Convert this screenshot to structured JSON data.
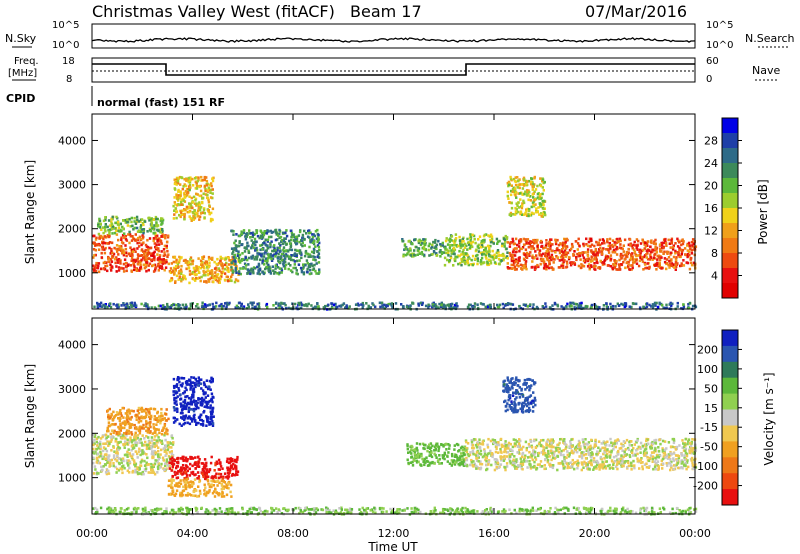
{
  "header": {
    "station": "Christmas Valley West (fitACF)",
    "beam": "Beam 17",
    "date": "07/Mar/2016"
  },
  "meta_panels": {
    "noise": {
      "left_label": "N.Sky",
      "right_label": "N.Search",
      "left_ticks": [
        "10^5",
        "10^0"
      ],
      "right_ticks": [
        "10^5",
        "10^0"
      ]
    },
    "freq": {
      "left_label_line1": "Freq.",
      "left_label_line2": "[MHz]",
      "right_label": "Nave",
      "left_ticks": [
        "18",
        "8"
      ],
      "right_ticks": [
        "60",
        "0"
      ]
    },
    "cpid": {
      "label": "CPID",
      "value": "normal (fast) 151 RF"
    }
  },
  "colorbars": {
    "power": {
      "label": "Power [dB]",
      "ticks": [
        "28",
        "24",
        "20",
        "16",
        "12",
        "8",
        "4"
      ],
      "colors": [
        "#0000e6",
        "#1e3fa8",
        "#2e6b88",
        "#3c8a5a",
        "#5cb83a",
        "#9ccd2e",
        "#f0d21a",
        "#f0a01a",
        "#f07a14",
        "#ee4a10",
        "#e81010",
        "#e00000"
      ]
    },
    "velocity": {
      "label": "Velocity [m s⁻¹]",
      "ticks": [
        "200",
        "100",
        "50",
        "15",
        "-15",
        "-50",
        "-100",
        "-200"
      ],
      "colors": [
        "#1020c0",
        "#2a55b0",
        "#2e7a5a",
        "#5cb83a",
        "#90d050",
        "#c8c8c8",
        "#f0c850",
        "#f0a020",
        "#ee7818",
        "#ee4810",
        "#e81010"
      ]
    }
  },
  "axes": {
    "y_label": "Slant Range [km]",
    "y_ticks": [
      "4000",
      "3000",
      "2000",
      "1000"
    ],
    "x_label": "Time UT",
    "x_ticks": [
      "00:00",
      "04:00",
      "08:00",
      "12:00",
      "16:00",
      "20:00",
      "00:00"
    ]
  },
  "chart_data": [
    {
      "type": "heatmap",
      "name": "Power [dB]",
      "x_unit": "UT hours",
      "y_unit": "km",
      "xlim": [
        0,
        24
      ],
      "ylim": [
        180,
        4600
      ],
      "regions": [
        {
          "x0": 0.0,
          "x1": 3.0,
          "y0": 1050,
          "y1": 1900,
          "value": 26
        },
        {
          "x0": 0.2,
          "x1": 2.8,
          "y0": 1900,
          "y1": 2300,
          "value": 12
        },
        {
          "x0": 3.0,
          "x1": 5.8,
          "y0": 800,
          "y1": 1400,
          "value": 20
        },
        {
          "x0": 3.2,
          "x1": 4.8,
          "y0": 2200,
          "y1": 3200,
          "value": 18
        },
        {
          "x0": 5.5,
          "x1": 9.0,
          "y0": 1000,
          "y1": 2000,
          "value": 8
        },
        {
          "x0": 12.3,
          "x1": 14.0,
          "y0": 1400,
          "y1": 1800,
          "value": 10
        },
        {
          "x0": 14.0,
          "x1": 16.5,
          "y0": 1200,
          "y1": 1900,
          "value": 14
        },
        {
          "x0": 16.5,
          "x1": 24.0,
          "y0": 1100,
          "y1": 1800,
          "value": 26
        },
        {
          "x0": 16.5,
          "x1": 18.0,
          "y0": 2300,
          "y1": 3200,
          "value": 16
        },
        {
          "x0": 0.0,
          "x1": 24.0,
          "y0": 200,
          "y1": 350,
          "value": 6
        }
      ]
    },
    {
      "type": "heatmap",
      "name": "Velocity [m s⁻¹]",
      "x_unit": "UT hours",
      "y_unit": "km",
      "xlim": [
        0,
        24
      ],
      "ylim": [
        180,
        4600
      ],
      "regions": [
        {
          "x0": 0.0,
          "x1": 3.2,
          "y0": 1100,
          "y1": 2000,
          "value": 0
        },
        {
          "x0": 0.5,
          "x1": 3.0,
          "y0": 2000,
          "y1": 2600,
          "value": -60
        },
        {
          "x0": 3.0,
          "x1": 5.8,
          "y0": 1000,
          "y1": 1500,
          "value": -200
        },
        {
          "x0": 3.0,
          "x1": 5.5,
          "y0": 600,
          "y1": 1000,
          "value": -40
        },
        {
          "x0": 3.2,
          "x1": 4.8,
          "y0": 2200,
          "y1": 3300,
          "value": 200
        },
        {
          "x0": 12.5,
          "x1": 14.8,
          "y0": 1300,
          "y1": 1800,
          "value": 45
        },
        {
          "x0": 14.8,
          "x1": 24.0,
          "y0": 1200,
          "y1": 1900,
          "value": 0
        },
        {
          "x0": 16.3,
          "x1": 17.6,
          "y0": 2500,
          "y1": 3300,
          "value": 150
        },
        {
          "x0": 0.0,
          "x1": 24.0,
          "y0": 200,
          "y1": 350,
          "value": 30
        }
      ]
    }
  ]
}
